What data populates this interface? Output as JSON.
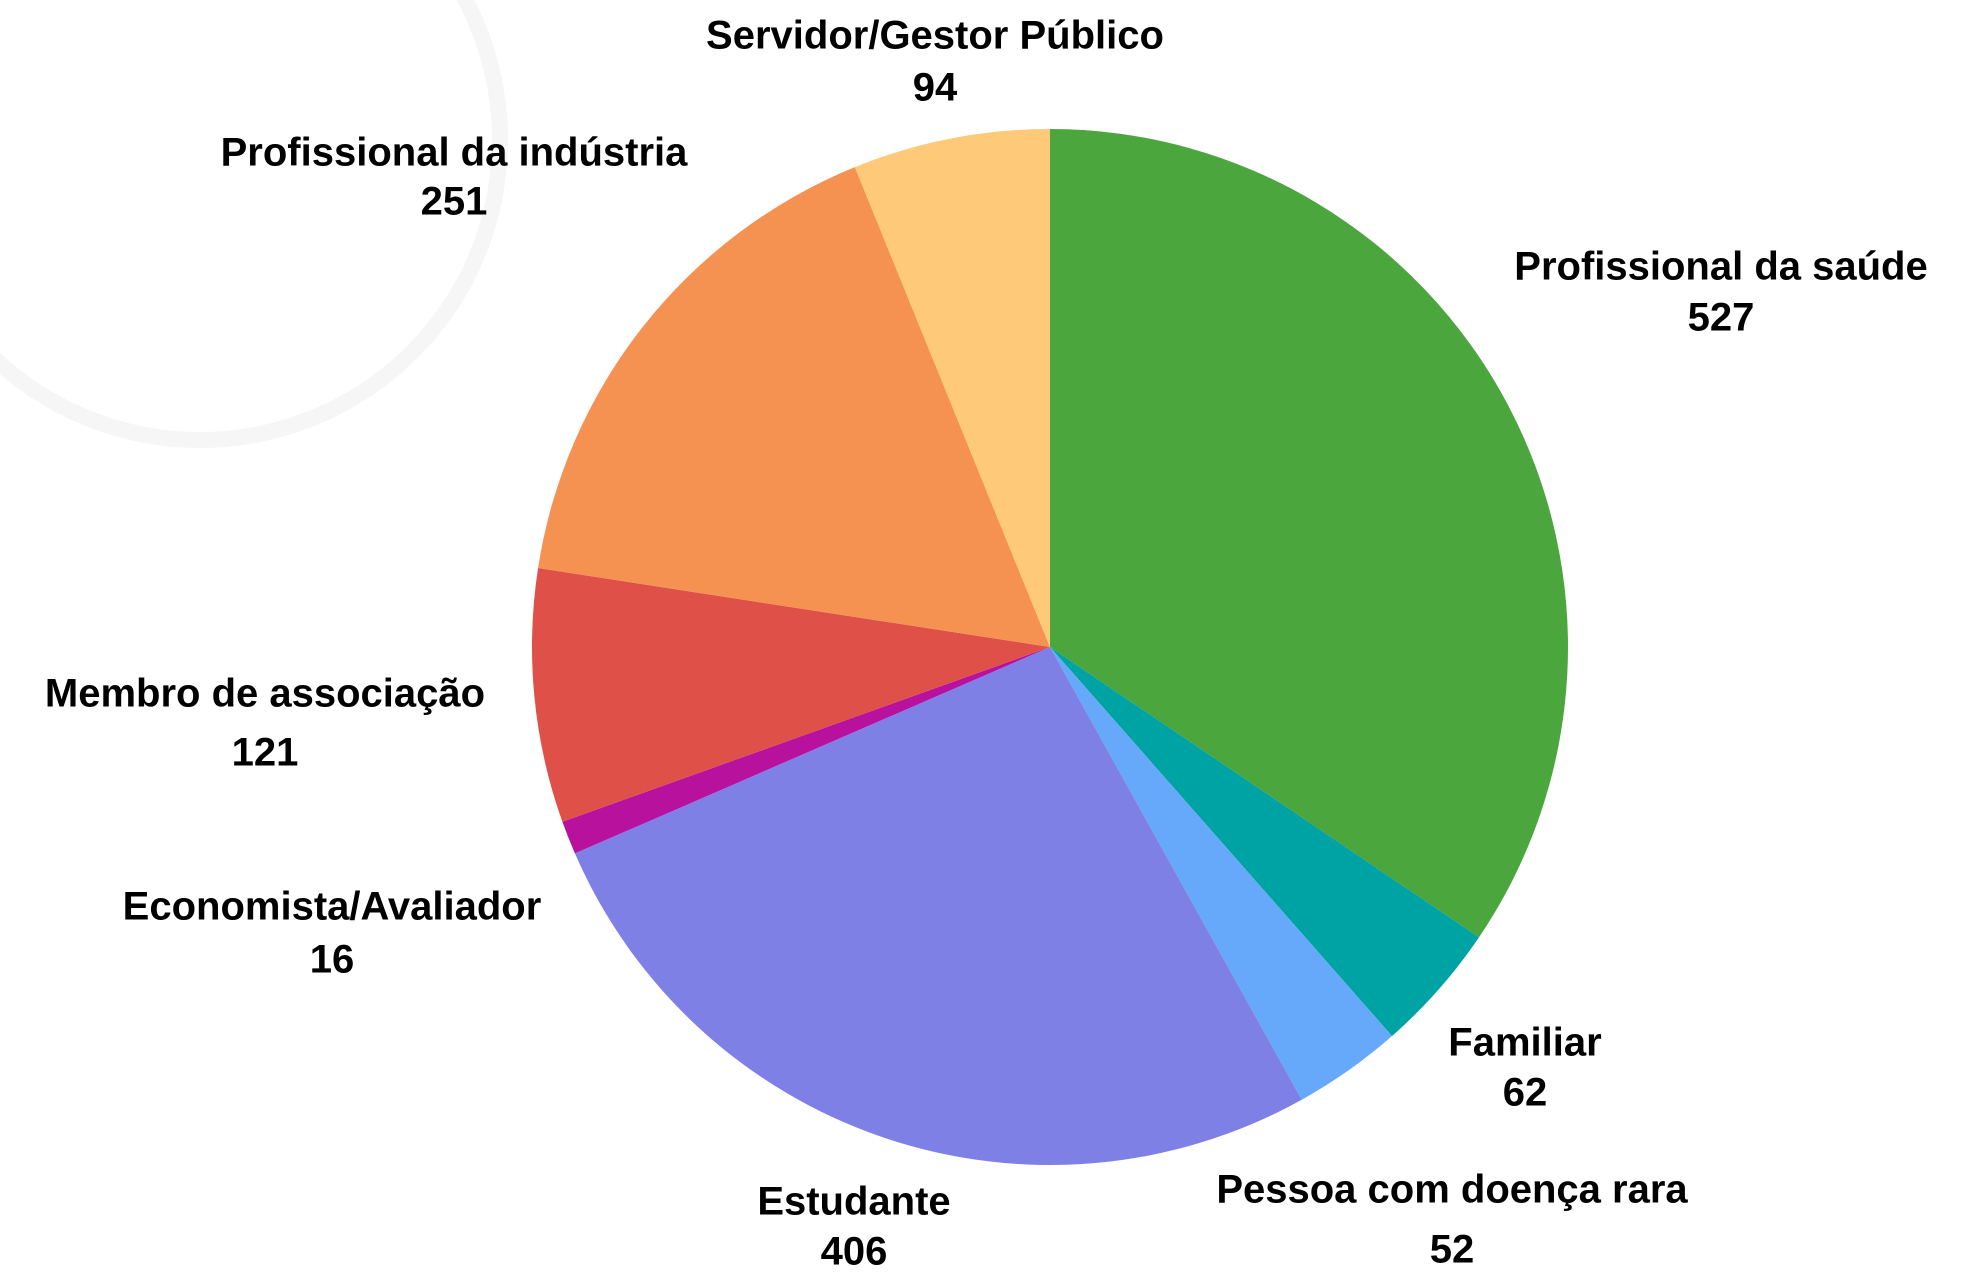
{
  "chart_data": {
    "type": "pie",
    "categories": [
      "Profissional da saúde",
      "Familiar",
      "Pessoa com doença rara",
      "Estudante",
      "Economista/Avaliador",
      "Membro de associação",
      "Profissional da indústria",
      "Servidor/Gestor Público"
    ],
    "values": [
      527,
      62,
      52,
      406,
      16,
      121,
      251,
      94
    ],
    "colors": [
      "#4ca63e",
      "#00a3a3",
      "#66a8f9",
      "#7f80e6",
      "#b8119e",
      "#df5148",
      "#f59252",
      "#fec979"
    ]
  }
}
